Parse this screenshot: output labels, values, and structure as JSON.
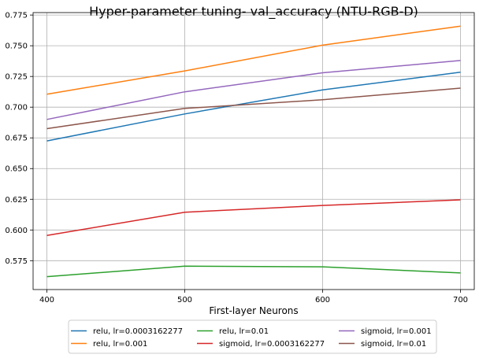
{
  "chart_data": {
    "type": "line",
    "title": "Hyper-parameter tuning- val_accuracy (NTU-RGB-D)",
    "xlabel": "First-layer Neurons",
    "ylabel": "",
    "x": [
      400,
      500,
      600,
      700
    ],
    "x_ticks": [
      "400",
      "500",
      "600",
      "700"
    ],
    "xlim": [
      390,
      710
    ],
    "ylim": [
      0.5515,
      0.777
    ],
    "y_ticks": [
      0.575,
      0.6,
      0.625,
      0.65,
      0.675,
      0.7,
      0.725,
      0.75,
      0.775
    ],
    "y_tick_labels": [
      "0.575",
      "0.600",
      "0.625",
      "0.650",
      "0.675",
      "0.700",
      "0.725",
      "0.750",
      "0.775"
    ],
    "grid": true,
    "legend_position": "bottom-center",
    "series": [
      {
        "name": "relu, lr=0.0003162277",
        "color": "#1f77b4",
        "values": [
          0.6725,
          0.6945,
          0.714,
          0.7285
        ]
      },
      {
        "name": "relu, lr=0.001",
        "color": "#ff7f0e",
        "values": [
          0.7105,
          0.7295,
          0.7505,
          0.766
        ]
      },
      {
        "name": "relu, lr=0.01",
        "color": "#2ca02c",
        "values": [
          0.562,
          0.5705,
          0.57,
          0.565
        ]
      },
      {
        "name": "sigmoid, lr=0.0003162277",
        "color": "#d62728",
        "values": [
          0.5955,
          0.6145,
          0.62,
          0.6245
        ]
      },
      {
        "name": "sigmoid, lr=0.001",
        "color": "#9467bd",
        "values": [
          0.69,
          0.7125,
          0.728,
          0.738
        ]
      },
      {
        "name": "sigmoid, lr=0.01",
        "color": "#8c564b",
        "values": [
          0.6825,
          0.699,
          0.706,
          0.7155
        ]
      }
    ]
  }
}
